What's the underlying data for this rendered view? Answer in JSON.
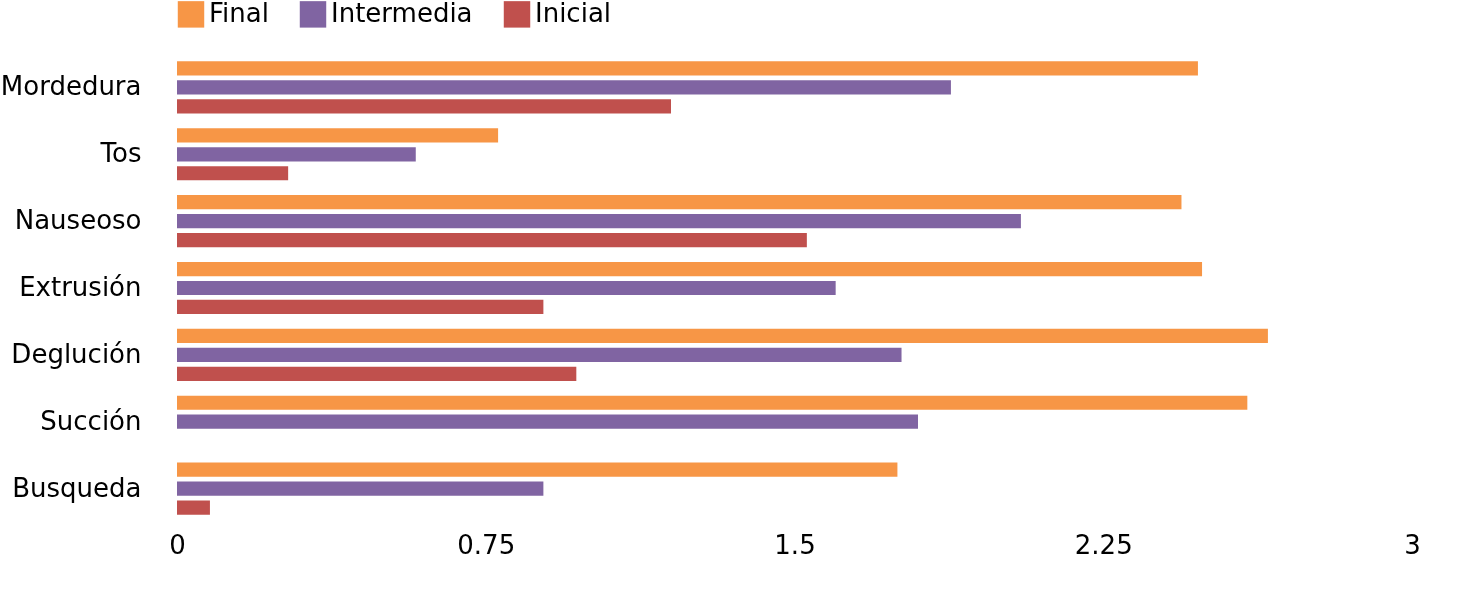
{
  "chart_data": {
    "type": "bar",
    "orientation": "horizontal",
    "categories": [
      "Mordedura",
      "Tos",
      "Nauseoso",
      "Extrusión",
      "Deglución",
      "Succión",
      "Busqueda"
    ],
    "series": [
      {
        "name": "Final",
        "color": "#f79646",
        "values": [
          2.48,
          0.78,
          2.44,
          2.49,
          2.65,
          2.6,
          1.75
        ]
      },
      {
        "name": "Intermedia",
        "color": "#8064a2",
        "values": [
          1.88,
          0.58,
          2.05,
          1.6,
          1.76,
          1.8,
          0.89
        ]
      },
      {
        "name": "Inicial",
        "color": "#c0504d",
        "values": [
          1.2,
          0.27,
          1.53,
          0.89,
          0.97,
          null,
          0.08
        ]
      }
    ],
    "xlim": [
      0,
      3
    ],
    "xticks": [
      0,
      0.75,
      1.5,
      2.25,
      3
    ],
    "grid": false,
    "legend": "top left"
  }
}
